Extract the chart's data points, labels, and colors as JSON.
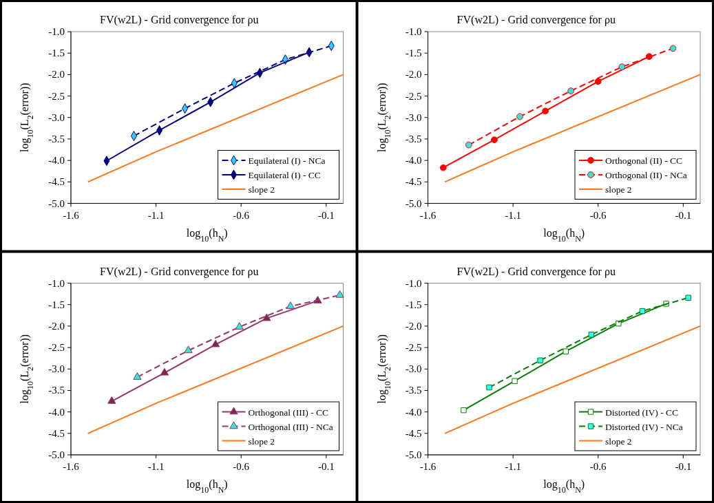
{
  "chart_data": [
    {
      "type": "line",
      "title": "FV(w2L) - Grid convergence for ρu",
      "xlabel": "log$_{10}$(h$_{N}$)",
      "ylabel": "log$_{10}$(L$_{2}$(error))",
      "xlim": [
        -1.6,
        0.0
      ],
      "ylim": [
        -5.0,
        -1.0
      ],
      "xticks": [
        -1.6,
        -1.1,
        -0.6,
        -0.1
      ],
      "yticks": [
        {
          "value": -1,
          "label": "-1.0"
        },
        -1.5,
        {
          "value": -2,
          "label": "-2.0"
        },
        -2.5,
        {
          "value": -3,
          "label": "-3.0"
        },
        -3.5,
        {
          "value": -4,
          "label": "-4.0"
        },
        -4.5,
        {
          "value": -5,
          "label": "-5.0"
        }
      ],
      "legend": "bottom right",
      "series": [
        {
          "name": "Equilateral (I) - NCa",
          "color": "#000080",
          "colors": [
            "#33ccff",
            "#33ccff",
            "#33ccff",
            "#33ccff",
            "#33ccff"
          ],
          "marker": "diamond",
          "line_style": "dashed",
          "x": [
            -1.23,
            -0.93,
            -0.64,
            -0.34,
            -0.07
          ],
          "values": [
            -3.43,
            -2.79,
            -2.2,
            -1.65,
            -1.33
          ]
        },
        {
          "name": "Equilateral (I) - CC",
          "color": "#000080",
          "colors": [
            "#000080",
            "#000080",
            "#000080",
            "#000080",
            "#000080"
          ],
          "marker": "diamond",
          "line_style": "solid",
          "x": [
            -1.39,
            -1.08,
            -0.78,
            -0.49,
            -0.2
          ],
          "values": [
            -4.01,
            -3.3,
            -2.64,
            -1.96,
            -1.48
          ]
        },
        {
          "name": "slope 2",
          "color": "#ff7518",
          "marker": "none",
          "line_style": "solid",
          "x": [
            -1.5,
            -1.1,
            0.0
          ],
          "values": [
            -4.5,
            -3.8,
            -2.0
          ]
        }
      ]
    },
    {
      "type": "line",
      "title": "FV(w2L) - Grid convergence for ρu",
      "xlabel": "log$_{10}$(h$_{N}$)",
      "ylabel": "log$_{10}$(L$_{2}$(error))",
      "xlim": [
        -1.6,
        0.0
      ],
      "ylim": [
        -5.0,
        -1.0
      ],
      "xticks": [
        -1.6,
        -1.1,
        -0.6,
        -0.1
      ],
      "yticks": [
        {
          "value": -1,
          "label": "-1.0"
        },
        -1.5,
        {
          "value": -2,
          "label": "-2.0"
        },
        -2.5,
        {
          "value": -3,
          "label": "-3.0"
        },
        -3.5,
        {
          "value": -4,
          "label": "-4.0"
        },
        -4.5,
        {
          "value": -5,
          "label": "-5.0"
        }
      ],
      "legend": "bottom right",
      "series": [
        {
          "name": "Orthogonal (II) - CC",
          "color": "#ff0000",
          "colors": [
            "#ff0000",
            "#ff0000",
            "#ff0000",
            "#ff0000",
            "#ff0000"
          ],
          "marker": "circle",
          "line_style": "solid",
          "x": [
            -1.51,
            -1.21,
            -0.91,
            -0.6,
            -0.3
          ],
          "values": [
            -4.17,
            -3.52,
            -2.85,
            -2.16,
            -1.58
          ]
        },
        {
          "name": "Orthogonal (II) - NCa",
          "color": "#ff0000",
          "colors": [
            "#33e6d9",
            "#33e6d9",
            "#33e6d9",
            "#33e6d9",
            "#33e6d9"
          ],
          "marker": "circle",
          "line_style": "dashed",
          "x": [
            -1.36,
            -1.06,
            -0.76,
            -0.46,
            -0.16
          ],
          "values": [
            -3.64,
            -2.98,
            -2.38,
            -1.82,
            -1.39
          ]
        },
        {
          "name": "slope 2",
          "color": "#ff7518",
          "marker": "none",
          "line_style": "solid",
          "x": [
            -1.5,
            -1.1,
            0.0
          ],
          "values": [
            -4.5,
            -3.8,
            -2.0
          ]
        }
      ]
    },
    {
      "type": "line",
      "title": "FV(w2L) - Grid convergence for ρu",
      "xlabel": "log$_{10}$(h$_{N}$)",
      "ylabel": "log$_{10}$(L$_{2}$(error))",
      "xlim": [
        -1.6,
        0.0
      ],
      "ylim": [
        -5.0,
        -1.0
      ],
      "xticks": [
        -1.6,
        -1.1,
        -0.6,
        -0.1
      ],
      "yticks": [
        {
          "value": -1,
          "label": "-1.0"
        },
        -1.5,
        {
          "value": -2,
          "label": "-2.0"
        },
        -2.5,
        {
          "value": -3,
          "label": "-3.0"
        },
        -3.5,
        {
          "value": -4,
          "label": "-4.0"
        },
        -4.5,
        {
          "value": -5,
          "label": "-5.0"
        }
      ],
      "legend": "bottom right",
      "series": [
        {
          "name": "Orthogonal (III) - CC",
          "color": "#993366",
          "colors": [
            "#7a2a50",
            "#7a2a50",
            "#7a2a50",
            "#7a2a50",
            "#7a2a50"
          ],
          "marker": "triangle",
          "line_style": "solid",
          "x": [
            -1.36,
            -1.05,
            -0.75,
            -0.45,
            -0.15
          ],
          "values": [
            -3.75,
            -3.09,
            -2.43,
            -1.82,
            -1.41
          ]
        },
        {
          "name": "Orthogonal (III) - NCa",
          "color": "#993366",
          "colors": [
            "#33e6d9",
            "#33e6d9",
            "#33e6d9",
            "#33e6d9",
            "#33e6d9"
          ],
          "marker": "triangle",
          "line_style": "dashed",
          "x": [
            -1.21,
            -0.91,
            -0.61,
            -0.31,
            -0.02
          ],
          "values": [
            -3.19,
            -2.57,
            -2.02,
            -1.54,
            -1.28
          ]
        },
        {
          "name": "slope 2",
          "color": "#ff7518",
          "marker": "none",
          "line_style": "solid",
          "x": [
            -1.5,
            -1.1,
            0.0
          ],
          "values": [
            -4.5,
            -3.8,
            -2.0
          ]
        }
      ]
    },
    {
      "type": "line",
      "title": "FV(w2L) - Grid convergence for ρu",
      "xlabel": "log$_{10}$(h$_{N}$)",
      "ylabel": "log$_{10}$(L$_{2}$(error))",
      "xlim": [
        -1.6,
        0.0
      ],
      "ylim": [
        -5.0,
        -1.0
      ],
      "xticks": [
        -1.6,
        -1.1,
        -0.6,
        -0.1
      ],
      "yticks": [
        {
          "value": -1,
          "label": "-1.0"
        },
        -1.5,
        {
          "value": -2,
          "label": "-2.0"
        },
        -2.5,
        {
          "value": -3,
          "label": "-3.0"
        },
        -3.5,
        {
          "value": -4,
          "label": "-4.0"
        },
        -4.5,
        {
          "value": -5,
          "label": "-5.0"
        }
      ],
      "legend": "bottom right",
      "series": [
        {
          "name": "Distorted (IV) - CC",
          "color": "#008000",
          "colors": [
            "#ffffff",
            "#ffffff",
            "#ffffff",
            "#ffffff",
            "#ffffff"
          ],
          "marker": "square",
          "line_style": "solid",
          "x": [
            -1.39,
            -1.09,
            -0.79,
            -0.48,
            -0.2
          ],
          "values": [
            -3.96,
            -3.28,
            -2.59,
            -1.94,
            -1.48
          ]
        },
        {
          "name": "Distorted (IV) - NCa",
          "color": "#008000",
          "colors": [
            "#33ffff",
            "#33ffff",
            "#33ffff",
            "#33ffff",
            "#33ffff"
          ],
          "marker": "square",
          "line_style": "dashed",
          "x": [
            -1.24,
            -0.94,
            -0.64,
            -0.34,
            -0.07
          ],
          "values": [
            -3.43,
            -2.8,
            -2.2,
            -1.65,
            -1.34
          ]
        },
        {
          "name": "slope 2",
          "color": "#ff7518",
          "marker": "none",
          "line_style": "solid",
          "x": [
            -1.5,
            -1.1,
            0.0
          ],
          "values": [
            -4.5,
            -3.8,
            -2.0
          ]
        }
      ]
    }
  ]
}
